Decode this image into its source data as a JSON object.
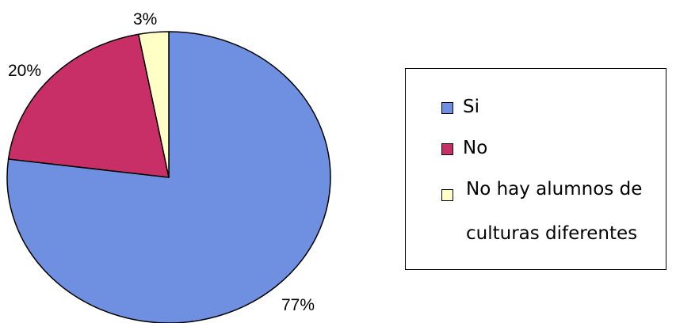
{
  "chart_data": {
    "type": "pie",
    "categories": [
      "Si",
      "No",
      "No hay alumnos de culturas diferentes"
    ],
    "values": [
      77,
      20,
      3
    ],
    "labels": [
      "77%",
      "20%",
      "3%"
    ],
    "colors": [
      "#6f8fe0",
      "#c82f66",
      "#ffffc6"
    ],
    "legend_position": "right"
  },
  "legend": {
    "items": [
      {
        "label": "Si",
        "color": "#6f8fe0"
      },
      {
        "label": "No",
        "color": "#c82f66"
      },
      {
        "label": "No hay alumnos de culturas diferentes",
        "color": "#ffffc6"
      }
    ]
  }
}
